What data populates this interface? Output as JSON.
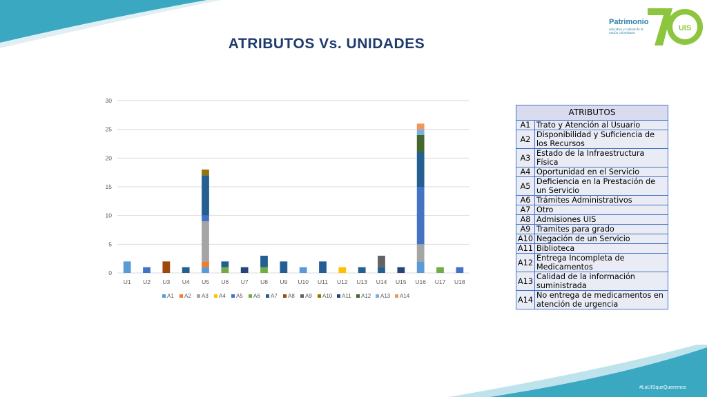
{
  "title": "ATRIBUTOS Vs. UNIDADES",
  "logo": {
    "name": "Patrimonio",
    "subtitle": "educativo y cultural de la nación colombiana",
    "number": "70",
    "initials": "UIS"
  },
  "hashtag": "#LaUISqueQueremos",
  "colors": {
    "accent_teal": "#3aa8c1",
    "accent_green": "#8cc63f",
    "title": "#1f3b6e",
    "table_border": "#4472c4"
  },
  "chart_data": {
    "type": "bar",
    "stacked": true,
    "categories": [
      "U1",
      "U2",
      "U3",
      "U4",
      "U5",
      "U6",
      "U7",
      "U8",
      "U9",
      "U10",
      "U11",
      "U12",
      "U13",
      "U14",
      "U15",
      "U16",
      "U17",
      "U18"
    ],
    "ylim": [
      0,
      30
    ],
    "yticks": [
      0,
      5,
      10,
      15,
      20,
      25,
      30
    ],
    "grid": true,
    "legend_position": "bottom",
    "series": [
      {
        "name": "A1",
        "color": "#5b9bd5",
        "values": [
          2,
          0,
          0,
          0,
          1,
          0,
          0,
          0,
          0,
          1,
          0,
          0,
          0,
          0,
          0,
          2,
          0,
          0
        ]
      },
      {
        "name": "A2",
        "color": "#ed7d31",
        "values": [
          0,
          0,
          0,
          0,
          1,
          0,
          0,
          0,
          0,
          0,
          0,
          0,
          0,
          0,
          0,
          0,
          0,
          0
        ]
      },
      {
        "name": "A3",
        "color": "#a5a5a5",
        "values": [
          0,
          0,
          0,
          0,
          7,
          0,
          0,
          0,
          0,
          0,
          0,
          0,
          0,
          0,
          0,
          3,
          0,
          0
        ]
      },
      {
        "name": "A4",
        "color": "#ffc000",
        "values": [
          0,
          0,
          0,
          0,
          0,
          0,
          0,
          0,
          0,
          0,
          0,
          1,
          0,
          0,
          0,
          0,
          0,
          0
        ]
      },
      {
        "name": "A5",
        "color": "#4472c4",
        "values": [
          0,
          1,
          0,
          0,
          1,
          0,
          0,
          0,
          0,
          0,
          0,
          0,
          0,
          0,
          0,
          10,
          0,
          1
        ]
      },
      {
        "name": "A6",
        "color": "#70ad47",
        "values": [
          0,
          0,
          0,
          0,
          0,
          1,
          0,
          1,
          0,
          0,
          0,
          0,
          0,
          0,
          0,
          0,
          1,
          0
        ]
      },
      {
        "name": "A7",
        "color": "#255e91",
        "values": [
          0,
          0,
          0,
          1,
          7,
          1,
          0,
          2,
          2,
          0,
          2,
          0,
          1,
          1,
          0,
          6,
          0,
          0
        ]
      },
      {
        "name": "A8",
        "color": "#9e480e",
        "values": [
          0,
          0,
          2,
          0,
          0,
          0,
          0,
          0,
          0,
          0,
          0,
          0,
          0,
          0,
          0,
          0,
          0,
          0
        ]
      },
      {
        "name": "A9",
        "color": "#636363",
        "values": [
          0,
          0,
          0,
          0,
          0,
          0,
          0,
          0,
          0,
          0,
          0,
          0,
          0,
          2,
          0,
          0,
          0,
          0
        ]
      },
      {
        "name": "A10",
        "color": "#997300",
        "values": [
          0,
          0,
          0,
          0,
          1,
          0,
          0,
          0,
          0,
          0,
          0,
          0,
          0,
          0,
          0,
          0,
          0,
          0
        ]
      },
      {
        "name": "A11",
        "color": "#264478",
        "values": [
          0,
          0,
          0,
          0,
          0,
          0,
          1,
          0,
          0,
          0,
          0,
          0,
          0,
          0,
          1,
          0,
          0,
          0
        ]
      },
      {
        "name": "A12",
        "color": "#43682b",
        "values": [
          0,
          0,
          0,
          0,
          0,
          0,
          0,
          0,
          0,
          0,
          0,
          0,
          0,
          0,
          0,
          3,
          0,
          0
        ]
      },
      {
        "name": "A13",
        "color": "#7cafdd",
        "values": [
          0,
          0,
          0,
          0,
          0,
          0,
          0,
          0,
          0,
          0,
          0,
          0,
          0,
          0,
          0,
          1,
          0,
          0
        ]
      },
      {
        "name": "A14",
        "color": "#f1975a",
        "values": [
          0,
          0,
          0,
          0,
          0,
          0,
          0,
          0,
          0,
          0,
          0,
          0,
          0,
          0,
          0,
          1,
          0,
          0
        ]
      }
    ]
  },
  "atributos": {
    "header": "ATRIBUTOS",
    "rows": [
      {
        "code": "A1",
        "label": "Trato y Atención al Usuario"
      },
      {
        "code": "A2",
        "label": "Disponibilidad y Suficiencia de los Recursos"
      },
      {
        "code": "A3",
        "label": "Estado de la Infraestructura Física"
      },
      {
        "code": "A4",
        "label": "Oportunidad en el Servicio"
      },
      {
        "code": "A5",
        "label": "Deficiencia en la Prestación de un Servicio"
      },
      {
        "code": "A6",
        "label": "Trámites Administrativos"
      },
      {
        "code": "A7",
        "label": "Otro"
      },
      {
        "code": "A8",
        "label": "Admisiones UIS"
      },
      {
        "code": "A9",
        "label": "Tramites para grado"
      },
      {
        "code": "A10",
        "label": "Negación de un Servicio"
      },
      {
        "code": "A11",
        "label": "Biblioteca"
      },
      {
        "code": "A12",
        "label": "Entrega Incompleta de Medicamentos"
      },
      {
        "code": "A13",
        "label": "Calidad de la información suministrada"
      },
      {
        "code": "A14",
        "label": "No entrega  de medicamentos en atención de urgencia"
      }
    ]
  }
}
